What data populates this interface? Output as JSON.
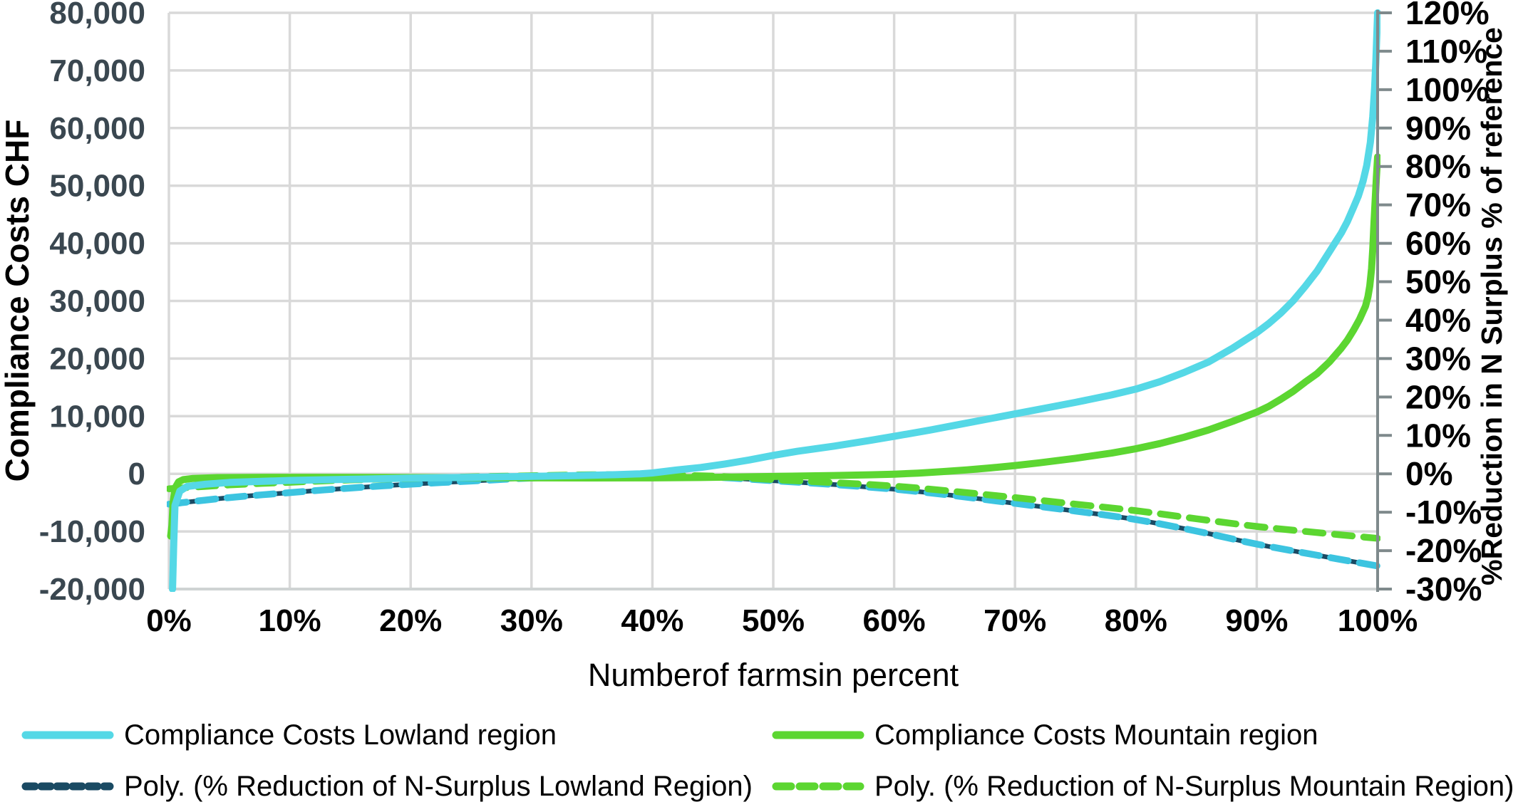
{
  "chart_data": {
    "type": "line",
    "grid": true,
    "x_axis": {
      "label": "Numberof farmsin percent",
      "range": [
        0,
        100
      ],
      "ticks": [
        "0%",
        "10%",
        "20%",
        "30%",
        "40%",
        "50%",
        "60%",
        "70%",
        "80%",
        "90%",
        "100%"
      ]
    },
    "y_left": {
      "label": "Compliance Costs CHF",
      "range": [
        -20000,
        80000
      ],
      "tick_step": 10000,
      "ticks": [
        "80,000",
        "70,000",
        "60,000",
        "50,000",
        "40,000",
        "30,000",
        "20,000",
        "10,000",
        "0",
        "-10,000",
        "-20,000"
      ]
    },
    "y_right": {
      "label": "%Reduction in N Surplus % of reference",
      "range": [
        -30,
        120
      ],
      "tick_step": 10,
      "ticks": [
        "120%",
        "110%",
        "100%",
        "90%",
        "80%",
        "70%",
        "60%",
        "50%",
        "40%",
        "30%",
        "20%",
        "10%",
        "0%",
        "-10%",
        "-20%",
        "-30%"
      ]
    },
    "series": [
      {
        "name": "Compliance Costs Lowland region",
        "axis": "left",
        "style": "solid",
        "color": "#55D8E6",
        "points": [
          [
            0.3,
            -20000
          ],
          [
            0.4,
            -12000
          ],
          [
            0.5,
            -5500
          ],
          [
            0.9,
            -3000
          ],
          [
            1.5,
            -2200
          ],
          [
            3,
            -1800
          ],
          [
            5,
            -1500
          ],
          [
            10,
            -1150
          ],
          [
            15,
            -950
          ],
          [
            20,
            -750
          ],
          [
            25,
            -600
          ],
          [
            30,
            -450
          ],
          [
            34,
            -300
          ],
          [
            37,
            -150
          ],
          [
            39,
            0
          ],
          [
            40,
            150
          ],
          [
            42,
            650
          ],
          [
            44,
            1100
          ],
          [
            46,
            1700
          ],
          [
            48,
            2400
          ],
          [
            50,
            3200
          ],
          [
            52,
            3900
          ],
          [
            55,
            4800
          ],
          [
            58,
            5800
          ],
          [
            60,
            6500
          ],
          [
            63,
            7600
          ],
          [
            65,
            8400
          ],
          [
            68,
            9600
          ],
          [
            70,
            10400
          ],
          [
            73,
            11600
          ],
          [
            75,
            12400
          ],
          [
            78,
            13700
          ],
          [
            80,
            14700
          ],
          [
            82,
            16000
          ],
          [
            84,
            17600
          ],
          [
            86,
            19400
          ],
          [
            88,
            21800
          ],
          [
            90,
            24500
          ],
          [
            91,
            26100
          ],
          [
            92,
            27900
          ],
          [
            93,
            30000
          ],
          [
            94,
            32500
          ],
          [
            95,
            35200
          ],
          [
            96,
            38500
          ],
          [
            97,
            41800
          ],
          [
            97.5,
            43800
          ],
          [
            98,
            46200
          ],
          [
            98.4,
            48200
          ],
          [
            98.8,
            50800
          ],
          [
            99.1,
            53500
          ],
          [
            99.4,
            57500
          ],
          [
            99.6,
            62000
          ],
          [
            99.75,
            67000
          ],
          [
            99.85,
            71500
          ],
          [
            100,
            80000
          ]
        ]
      },
      {
        "name": "Compliance Costs Mountain region",
        "axis": "left",
        "style": "solid",
        "color": "#5CD631",
        "points": [
          [
            0.15,
            -10800
          ],
          [
            0.25,
            -9000
          ],
          [
            0.35,
            -5000
          ],
          [
            0.5,
            -2500
          ],
          [
            0.8,
            -1400
          ],
          [
            1.2,
            -1000
          ],
          [
            2,
            -800
          ],
          [
            4,
            -650
          ],
          [
            8,
            -600
          ],
          [
            12,
            -600
          ],
          [
            16,
            -620
          ],
          [
            20,
            -640
          ],
          [
            25,
            -660
          ],
          [
            30,
            -700
          ],
          [
            35,
            -720
          ],
          [
            40,
            -700
          ],
          [
            44,
            -640
          ],
          [
            48,
            -520
          ],
          [
            52,
            -400
          ],
          [
            55,
            -300
          ],
          [
            58,
            -170
          ],
          [
            60,
            -60
          ],
          [
            62,
            120
          ],
          [
            64,
            380
          ],
          [
            66,
            680
          ],
          [
            68,
            1030
          ],
          [
            70,
            1430
          ],
          [
            72,
            1900
          ],
          [
            75,
            2700
          ],
          [
            78,
            3600
          ],
          [
            80,
            4350
          ],
          [
            82,
            5250
          ],
          [
            84,
            6350
          ],
          [
            86,
            7600
          ],
          [
            88,
            9100
          ],
          [
            90,
            10700
          ],
          [
            91,
            11700
          ],
          [
            92,
            12950
          ],
          [
            93,
            14300
          ],
          [
            94,
            15900
          ],
          [
            95,
            17400
          ],
          [
            96,
            19400
          ],
          [
            97,
            21800
          ],
          [
            97.5,
            23200
          ],
          [
            98,
            24900
          ],
          [
            98.5,
            26800
          ],
          [
            99,
            29100
          ],
          [
            99.2,
            30700
          ],
          [
            99.35,
            32600
          ],
          [
            99.5,
            35600
          ],
          [
            99.6,
            39000
          ],
          [
            99.7,
            43500
          ],
          [
            99.8,
            47500
          ],
          [
            99.9,
            51500
          ],
          [
            100,
            55000
          ]
        ]
      },
      {
        "name": "Poly. (% Reduction of N-Surplus Lowland Region)",
        "axis": "right",
        "style": "dashed",
        "color": "#3CC4E0",
        "underlay_color": "#1A4A63",
        "points": [
          [
            0,
            -7.9
          ],
          [
            5,
            -6.2
          ],
          [
            10,
            -4.9
          ],
          [
            15,
            -3.7
          ],
          [
            20,
            -2.7
          ],
          [
            25,
            -1.9
          ],
          [
            30,
            -1.1
          ],
          [
            35,
            -0.6
          ],
          [
            38,
            -0.45
          ],
          [
            40,
            -0.5
          ],
          [
            45,
            -0.85
          ],
          [
            50,
            -1.8
          ],
          [
            55,
            -2.8
          ],
          [
            60,
            -4.0
          ],
          [
            65,
            -5.7
          ],
          [
            70,
            -7.7
          ],
          [
            75,
            -9.7
          ],
          [
            80,
            -11.9
          ],
          [
            85,
            -14.9
          ],
          [
            90,
            -18.3
          ],
          [
            95,
            -21.2
          ],
          [
            100,
            -24.0
          ]
        ]
      },
      {
        "name": "Poly. (% Reduction of N-Surplus Mountain Region)",
        "axis": "right",
        "style": "dashed",
        "color": "#5CD631",
        "points": [
          [
            0,
            -3.9
          ],
          [
            5,
            -2.9
          ],
          [
            10,
            -2.2
          ],
          [
            15,
            -1.6
          ],
          [
            20,
            -1.2
          ],
          [
            25,
            -0.8
          ],
          [
            30,
            -0.5
          ],
          [
            35,
            -0.25
          ],
          [
            38,
            -0.2
          ],
          [
            40,
            -0.3
          ],
          [
            45,
            -0.6
          ],
          [
            50,
            -1.5
          ],
          [
            55,
            -2.3
          ],
          [
            60,
            -3.2
          ],
          [
            65,
            -4.6
          ],
          [
            70,
            -6.2
          ],
          [
            75,
            -7.9
          ],
          [
            80,
            -9.6
          ],
          [
            85,
            -11.7
          ],
          [
            90,
            -13.7
          ],
          [
            95,
            -15.3
          ],
          [
            100,
            -16.8
          ]
        ]
      }
    ],
    "legend": {
      "position": "bottom",
      "items": [
        {
          "label": "Compliance Costs Lowland region",
          "color": "#55D8E6",
          "style": "solid"
        },
        {
          "label": "Compliance Costs Mountain region",
          "color": "#5CD631",
          "style": "solid"
        },
        {
          "label": "Poly. (% Reduction of N-Surplus Lowland Region)",
          "color": "#1A4A63",
          "style": "dashed",
          "legend_dash": "13 9"
        },
        {
          "label": "Poly. (% Reduction of N-Surplus Mountain Region)",
          "color": "#5CD631",
          "style": "dashed",
          "legend_dash": "21 12"
        }
      ]
    },
    "colors": {
      "gridline": "#D9D9D9",
      "bottom_axis": "#CFD3D3",
      "right_axis": "#7F8A8C",
      "left_tick_text": "#3A4750",
      "black_text": "#000000"
    }
  }
}
